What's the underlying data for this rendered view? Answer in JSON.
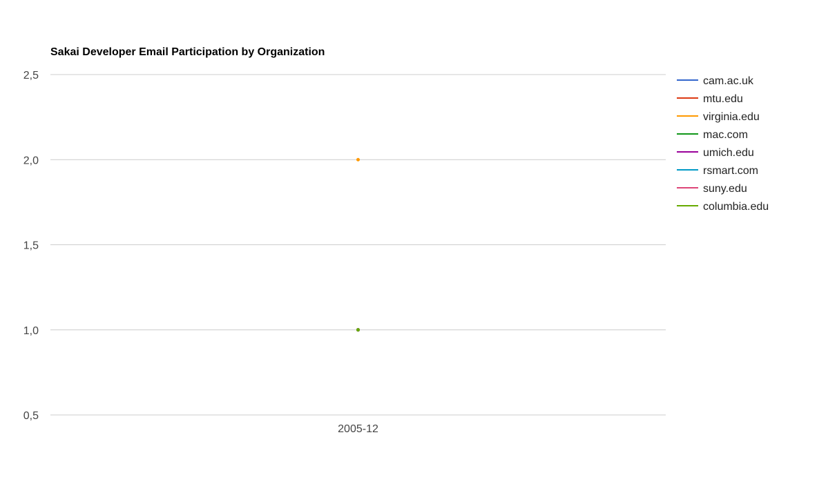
{
  "chart_data": {
    "type": "line",
    "title": "Sakai Developer Email Participation by Organization",
    "xlabel": "",
    "ylabel": "",
    "categories": [
      "2005-12"
    ],
    "y_ticks": [
      "0,5",
      "1,0",
      "1,5",
      "2,0",
      "2,5"
    ],
    "y_tick_values": [
      0.5,
      1.0,
      1.5,
      2.0,
      2.5
    ],
    "ylim": [
      0.5,
      2.5
    ],
    "grid": true,
    "legend_position": "right",
    "series": [
      {
        "name": "cam.ac.uk",
        "color": "#3366cc",
        "values": [
          1
        ]
      },
      {
        "name": "mtu.edu",
        "color": "#dc3912",
        "values": [
          1
        ]
      },
      {
        "name": "virginia.edu",
        "color": "#ff9900",
        "values": [
          2
        ]
      },
      {
        "name": "mac.com",
        "color": "#109618",
        "values": [
          1
        ]
      },
      {
        "name": "umich.edu",
        "color": "#990099",
        "values": [
          1
        ]
      },
      {
        "name": "rsmart.com",
        "color": "#0099c6",
        "values": [
          1
        ]
      },
      {
        "name": "suny.edu",
        "color": "#dd4477",
        "values": [
          1
        ]
      },
      {
        "name": "columbia.edu",
        "color": "#66aa00",
        "values": [
          1
        ]
      }
    ]
  }
}
